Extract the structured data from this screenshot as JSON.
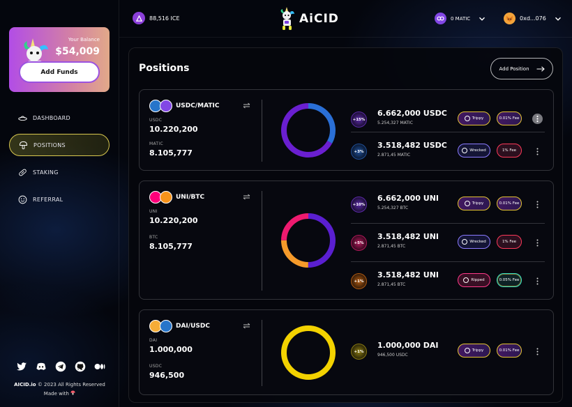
{
  "sidebar": {
    "balance": {
      "label": "Your Balance",
      "value": "$54,009",
      "button": "Add Funds"
    },
    "nav": [
      {
        "label": "DASHBOARD",
        "icon": "ufo-icon",
        "active": false
      },
      {
        "label": "POSITIONS",
        "icon": "mushroom-icon",
        "active": true
      },
      {
        "label": "STAKING",
        "icon": "pill-icon",
        "active": false
      },
      {
        "label": "REFERRAL",
        "icon": "smiley-icon",
        "active": false
      }
    ],
    "socials": [
      "twitter-icon",
      "discord-icon",
      "telegram-icon",
      "github-icon",
      "medium-icon"
    ],
    "footer": {
      "brand": "AICID.io",
      "copyright": "© 2023 All Rights Reserved",
      "made_with": "Made with"
    }
  },
  "topbar": {
    "ice_amount": "88,516 ICE",
    "logo_text": "AiCID",
    "matic_balance": "0 MATIC",
    "wallet": "0xd...076"
  },
  "main": {
    "title": "Positions",
    "add_position": "Add Position",
    "positions": [
      {
        "pair": "USDC/MATIC",
        "token_a": {
          "symbol": "USDC",
          "amount": "10.220,200",
          "color": "#2775ca"
        },
        "token_b": {
          "symbol": "MATIC",
          "amount": "8.105,777",
          "color": "#8247e5"
        },
        "donut": [
          {
            "fraction": 0.33,
            "color": "#2a6fd6"
          },
          {
            "fraction": 0.67,
            "color": "#6a1fd0"
          }
        ],
        "rows": [
          {
            "pct": "+15%",
            "amount": "6.662,000 USDC",
            "sub": "5.254,327 MATIC",
            "status": "Trippy",
            "fee": "0.01% Fee",
            "pct_color": "#5b2aa8"
          },
          {
            "pct": "+3%",
            "amount": "3.518,482 USDC",
            "sub": "2.871,45 MATIC",
            "status": "Wrecked",
            "fee": "1% Fee",
            "pct_color": "#1f4f99"
          }
        ]
      },
      {
        "pair": "UNI/BTC",
        "token_a": {
          "symbol": "UNI",
          "amount": "10.220,200",
          "color": "#ff007a"
        },
        "token_b": {
          "symbol": "BTC",
          "amount": "8.105,777",
          "color": "#f7931a"
        },
        "donut": [
          {
            "fraction": 0.5,
            "color": "#5a1fd0"
          },
          {
            "fraction": 0.25,
            "color": "#f59a2a"
          },
          {
            "fraction": 0.25,
            "color": "#ee1a6f"
          }
        ],
        "rows": [
          {
            "pct": "+10%",
            "amount": "6.662,000 UNI",
            "sub": "5.254,327 BTC",
            "status": "Trippy",
            "fee": "0.01% Fee",
            "pct_color": "#5b2aa8"
          },
          {
            "pct": "+5%",
            "amount": "3.518,482 UNI",
            "sub": "2.871,45 BTC",
            "status": "Wrecked",
            "fee": "1% Fee",
            "pct_color": "#b0185a"
          },
          {
            "pct": "+1%",
            "amount": "3.518,482 UNI",
            "sub": "2.871,45 BTC",
            "status": "Ripped",
            "fee": "0.05% Fee",
            "pct_color": "#b05a10"
          }
        ]
      },
      {
        "pair": "DAI/USDC",
        "token_a": {
          "symbol": "DAI",
          "amount": "1.000,000",
          "color": "#f5ac37"
        },
        "token_b": {
          "symbol": "USDC",
          "amount": "946,500",
          "color": "#2775ca"
        },
        "donut": [
          {
            "fraction": 1.0,
            "color": "#f3d200"
          }
        ],
        "rows": [
          {
            "pct": "+1%",
            "amount": "1.000,000 DAI",
            "sub": "946,500 USDC",
            "status": "Trippy",
            "fee": "0.01% Fee",
            "pct_color": "#8a7a10"
          }
        ]
      }
    ]
  }
}
